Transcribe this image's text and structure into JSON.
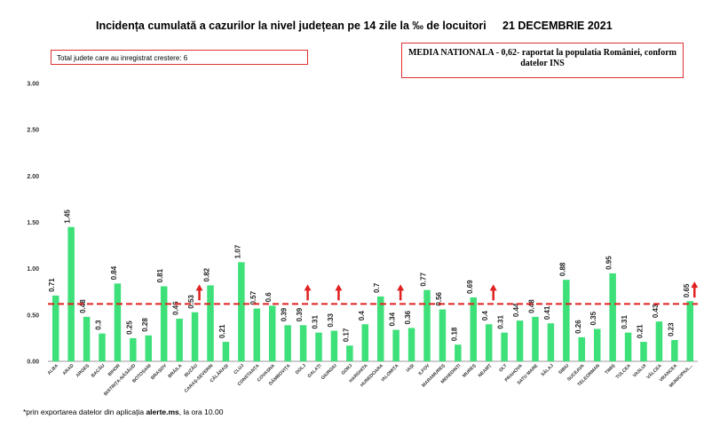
{
  "header": {
    "title": "Incidența cumulată a cazurilor la nivel județean pe 14 zile la ‰ de locuitori",
    "date": "21 DECEMBRIE 2021"
  },
  "boxes": {
    "increase_label": "Total judete care au inregistrat crestere: 6",
    "national_average_label": "MEDIA NATIONALA - 0,62-  raportat la populatia României, conform datelor INS"
  },
  "footnote": {
    "prefix": "*prin exportarea datelor din aplicația ",
    "source": "alerte.ms",
    "suffix": ", la ora 10.00"
  },
  "chart_data": {
    "type": "bar",
    "title": "Incidența cumulată a cazurilor la nivel județean pe 14 zile la ‰ de locuitori",
    "categories": [
      "ALBA",
      "ARAD",
      "ARGEȘ",
      "BACĂU",
      "BIHOR",
      "BISTRIȚA-NĂSĂUD",
      "BOTOȘANI",
      "BRAȘOV",
      "BRĂILA",
      "BUZĂU",
      "CARAȘ-SEVERIN",
      "CĂLĂRAȘI",
      "CLUJ",
      "CONSTANȚA",
      "COVASNA",
      "DÂMBOVIȚA",
      "DOLJ",
      "GALAȚI",
      "GIURGIU",
      "GORJ",
      "HARGHITA",
      "HUNEDOARA",
      "IALOMIȚA",
      "IAȘI",
      "ILFOV",
      "MARAMUREȘ",
      "MEHEDINȚI",
      "MUREȘ",
      "NEAMȚ",
      "OLT",
      "PRAHOVA",
      "SATU MARE",
      "SĂLAJ",
      "SIBIU",
      "SUCEAVA",
      "TELEORMAN",
      "TIMIȘ",
      "TULCEA",
      "VASLUI",
      "VÂLCEA",
      "VRANCEA",
      "MUNICIPIUL..."
    ],
    "values": [
      0.71,
      1.45,
      0.48,
      0.3,
      0.84,
      0.25,
      0.28,
      0.81,
      0.46,
      0.53,
      0.82,
      0.21,
      1.07,
      0.57,
      0.6,
      0.39,
      0.39,
      0.31,
      0.33,
      0.17,
      0.4,
      0.7,
      0.34,
      0.36,
      0.77,
      0.56,
      0.18,
      0.69,
      0.4,
      0.31,
      0.44,
      0.48,
      0.41,
      0.88,
      0.26,
      0.35,
      0.95,
      0.31,
      0.21,
      0.43,
      0.23,
      0.65
    ],
    "labels": [
      "0.71",
      "1.45",
      "0.48",
      "0.3",
      "0.84",
      "0.25",
      "0.28",
      "0.81",
      "0.46",
      "0.53",
      "0.82",
      "0.21",
      "1.07",
      "0.57",
      "0.6",
      "0.39",
      "0.39",
      "0.31",
      "0.33",
      "0.17",
      "0.4",
      "0.7",
      "0.34",
      "0.36",
      "0.77",
      "0.56",
      "0.18",
      "0.69",
      "0.4",
      "0.31",
      "0.44",
      "0.48",
      "0.41",
      "0.88",
      "0.26",
      "0.35",
      "0.95",
      "0.31",
      "0.21",
      "0.43",
      "0.23",
      "0.65"
    ],
    "increase_markers": [
      "BUZĂU",
      "DOLJ",
      "GIURGIU",
      "IALOMIȚA",
      "NEAMȚ",
      "MUNICIPIUL..."
    ],
    "national_average": 0.62,
    "ylim": [
      0,
      3.0
    ],
    "yticks": [
      "0.00",
      "0.50",
      "1.00",
      "1.50",
      "2.00",
      "2.50",
      "3.00"
    ],
    "xlabel": "",
    "ylabel": "",
    "grid": false,
    "legend": "none",
    "colors": {
      "bar": "#3ee07a",
      "average_line": "#e02020",
      "arrow": "#e02020",
      "axis": "#999999"
    }
  }
}
